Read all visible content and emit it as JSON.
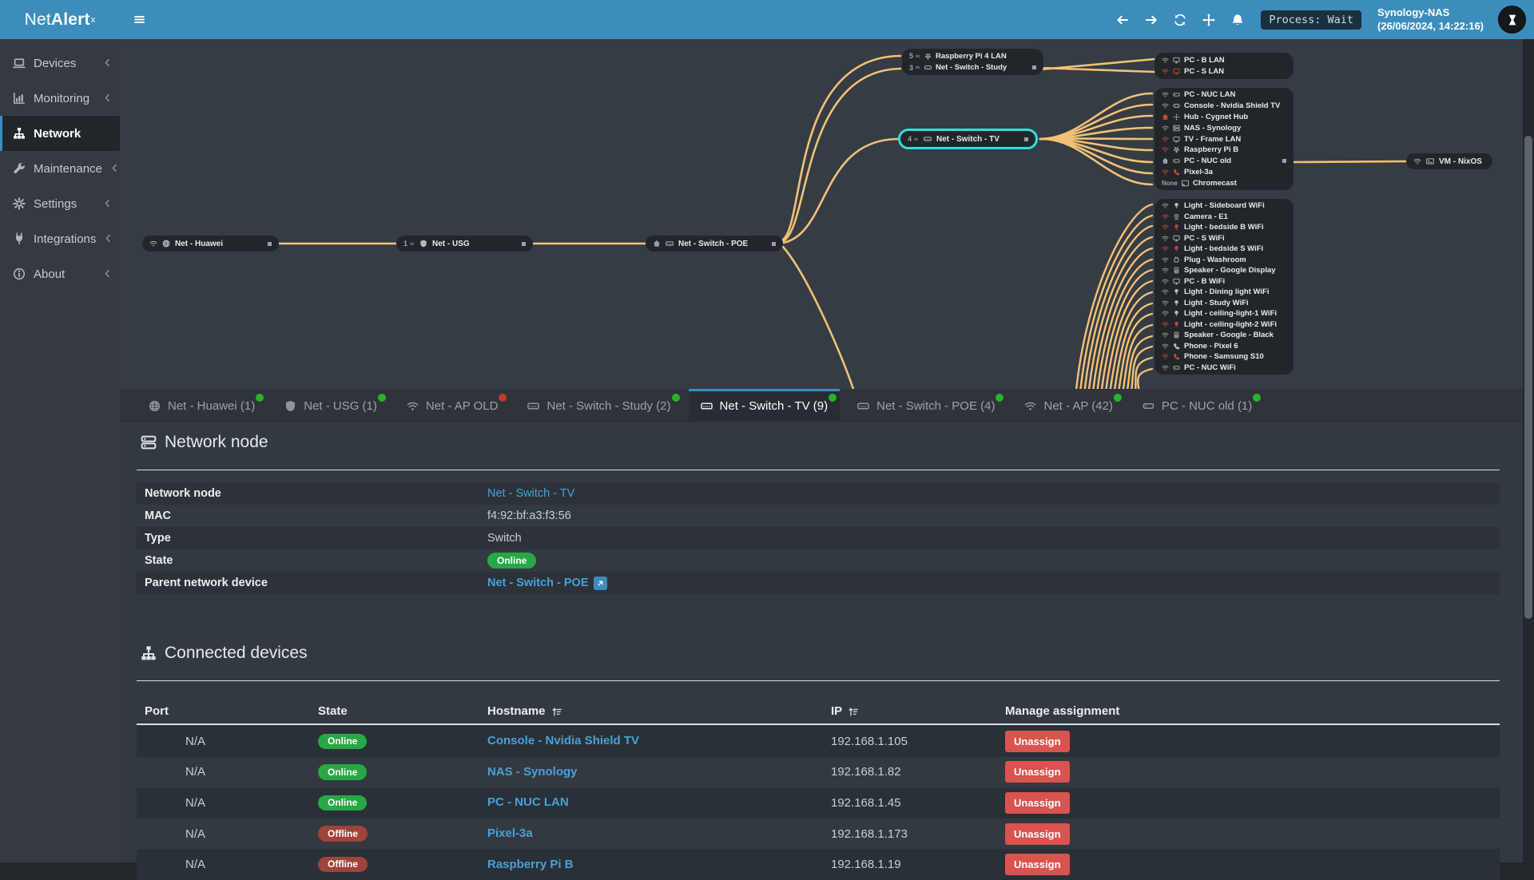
{
  "navbar": {
    "brand_net": "Net",
    "brand_alert": "Alert",
    "brand_sup": "x",
    "nav_icons": [
      "arrow-left",
      "arrow-right",
      "refresh",
      "move",
      "bell"
    ],
    "process_label": "Process: Wait",
    "host": "Synology-NAS",
    "timestamp": "(26/06/2024, 14:22:16)"
  },
  "sidebar": {
    "items": [
      {
        "label": "Devices",
        "icon": "laptop",
        "chevron": true,
        "active": false
      },
      {
        "label": "Monitoring",
        "icon": "chart",
        "chevron": true,
        "active": false
      },
      {
        "label": "Network",
        "icon": "sitemap",
        "chevron": false,
        "active": true
      },
      {
        "label": "Maintenance",
        "icon": "wrench",
        "chevron": true,
        "active": false
      },
      {
        "label": "Settings",
        "icon": "gear",
        "chevron": true,
        "active": false
      },
      {
        "label": "Integrations",
        "icon": "plug",
        "chevron": true,
        "active": false
      },
      {
        "label": "About",
        "icon": "info",
        "chevron": true,
        "active": false
      }
    ]
  },
  "diagram": {
    "chain": [
      {
        "icons": [
          "wifi"
        ],
        "icons2": [
          "globe"
        ],
        "label": "Net - Huawei",
        "port": true
      },
      {
        "count": "1",
        "icons2": [
          "shield"
        ],
        "label": "Net - USG",
        "port": true
      },
      {
        "icons": [
          "house"
        ],
        "icons2": [
          "switchdev"
        ],
        "label": "Net - Switch - POE",
        "port": true
      }
    ],
    "top_cluster": [
      {
        "count": "5",
        "icon": "rpi",
        "label": "Raspberry Pi 4 LAN"
      },
      {
        "count": "3",
        "icon": "switchdev",
        "label": "Net - Switch - Study",
        "port": true
      }
    ],
    "selected_node": {
      "count": "4",
      "icon": "switchdev",
      "label": "Net - Switch - TV",
      "port": true
    },
    "vm_node": {
      "conn": "wifi",
      "icon": "vm",
      "label": "VM - NixOS"
    },
    "lan_top_rows": [
      {
        "conn": "wifi",
        "conn_off": false,
        "icon": "desktop",
        "icon_off": false,
        "label": "PC - B LAN"
      },
      {
        "conn": "wifi",
        "conn_off": true,
        "icon": "desktop",
        "icon_off": true,
        "label": "PC - S LAN"
      }
    ],
    "tv_rows": [
      {
        "conn": "wifi",
        "conn_off": false,
        "icon": "minipc",
        "icon_off": false,
        "label": "PC - NUC LAN"
      },
      {
        "conn": "wifi",
        "conn_off": false,
        "icon": "gamepad",
        "icon_off": false,
        "label": "Console - Nvidia Shield TV"
      },
      {
        "conn": "house",
        "conn_off": true,
        "icon": "hub",
        "icon_off": false,
        "label": "Hub - Cygnet Hub"
      },
      {
        "conn": "wifi",
        "conn_off": false,
        "icon": "server",
        "icon_off": false,
        "label": "NAS - Synology"
      },
      {
        "conn": "wifi",
        "conn_off": true,
        "icon": "tv",
        "icon_off": false,
        "label": "TV - Frame LAN"
      },
      {
        "conn": "wifi",
        "conn_off": true,
        "icon": "rpi",
        "icon_off": false,
        "label": "Raspberry Pi B"
      },
      {
        "conn": "house",
        "conn_off": false,
        "icon": "minipc",
        "icon_off": false,
        "label": "PC - NUC old",
        "port": true
      },
      {
        "conn": "wifi",
        "conn_off": true,
        "icon": "phone",
        "icon_off": true,
        "label": "Pixel-3a"
      },
      {
        "conn": "none",
        "none_label": "None",
        "icon": "cast",
        "icon_off": false,
        "label": "Chromecast"
      }
    ],
    "wifi_rows": [
      {
        "conn": "wifi",
        "conn_off": false,
        "icon": "bulb",
        "icon_off": false,
        "label": "Light - Sideboard WiFi"
      },
      {
        "conn": "wifi",
        "conn_off": true,
        "icon": "camera",
        "icon_off": false,
        "label": "Camera - E1"
      },
      {
        "conn": "wifi",
        "conn_off": true,
        "icon": "bulb",
        "icon_off": true,
        "label": "Light - bedside B WiFi"
      },
      {
        "conn": "wifi",
        "conn_off": false,
        "icon": "desktop",
        "icon_off": false,
        "label": "PC - S WiFi"
      },
      {
        "conn": "wifi",
        "conn_off": true,
        "icon": "bulb",
        "icon_off": true,
        "label": "Light - bedside S WiFi"
      },
      {
        "conn": "wifi",
        "conn_off": false,
        "icon": "plugdev",
        "icon_off": false,
        "label": "Plug - Washroom"
      },
      {
        "conn": "wifi",
        "conn_off": false,
        "icon": "speaker",
        "icon_off": false,
        "label": "Speaker - Google Display"
      },
      {
        "conn": "wifi",
        "conn_off": false,
        "icon": "desktop",
        "icon_off": false,
        "label": "PC - B WiFi"
      },
      {
        "conn": "wifi",
        "conn_off": false,
        "icon": "bulb",
        "icon_off": false,
        "label": "Light - Dining light WiFi"
      },
      {
        "conn": "wifi",
        "conn_off": false,
        "icon": "bulb",
        "icon_off": false,
        "label": "Light - Study WiFi"
      },
      {
        "conn": "wifi",
        "conn_off": false,
        "icon": "bulb",
        "icon_off": false,
        "label": "Light - ceiling-light-1 WiFi"
      },
      {
        "conn": "wifi",
        "conn_off": true,
        "icon": "bulb",
        "icon_off": true,
        "label": "Light - ceiling-light-2 WiFi"
      },
      {
        "conn": "wifi",
        "conn_off": false,
        "icon": "speaker",
        "icon_off": false,
        "label": "Speaker - Google - Black"
      },
      {
        "conn": "wifi",
        "conn_off": false,
        "icon": "phone",
        "icon_off": false,
        "label": "Phone - Pixel 6"
      },
      {
        "conn": "wifi",
        "conn_off": true,
        "icon": "phone",
        "icon_off": true,
        "label": "Phone - Samsung S10"
      },
      {
        "conn": "wifi",
        "conn_off": false,
        "icon": "minipc",
        "icon_off": false,
        "label": "PC - NUC WiFi"
      }
    ]
  },
  "tabs": [
    {
      "icon": "globe",
      "label": "Net - Huawei (1)",
      "status": "online",
      "active": false
    },
    {
      "icon": "shield",
      "label": "Net - USG (1)",
      "status": "online",
      "active": false
    },
    {
      "icon": "wifi",
      "label": "Net - AP OLD",
      "status": "offline",
      "active": false
    },
    {
      "icon": "switchdev",
      "label": "Net - Switch - Study (2)",
      "status": "online",
      "active": false
    },
    {
      "icon": "switchdev",
      "label": "Net - Switch - TV (9)",
      "status": "online",
      "active": true
    },
    {
      "icon": "switchdev",
      "label": "Net - Switch - POE (4)",
      "status": "online",
      "active": false
    },
    {
      "icon": "wifi",
      "label": "Net - AP (42)",
      "status": "online",
      "active": false
    },
    {
      "icon": "minipc",
      "label": "PC - NUC old (1)",
      "status": "online",
      "active": false
    }
  ],
  "node_section": {
    "title": "Network node",
    "rows": [
      {
        "label": "Network node",
        "type": "link",
        "value": "Net - Switch - TV"
      },
      {
        "label": "MAC",
        "type": "text",
        "value": "f4:92:bf:a3:f3:56"
      },
      {
        "label": "Type",
        "type": "text",
        "value": "Switch"
      },
      {
        "label": "State",
        "type": "badge",
        "value": "Online"
      },
      {
        "label": "Parent network device",
        "type": "link-ext",
        "value": "Net - Switch - POE"
      }
    ]
  },
  "devices_section": {
    "title": "Connected devices",
    "columns": [
      {
        "label": "Port",
        "sort": false
      },
      {
        "label": "State",
        "sort": false
      },
      {
        "label": "Hostname",
        "sort": true
      },
      {
        "label": "IP",
        "sort": true
      },
      {
        "label": "Manage assignment",
        "sort": false
      }
    ],
    "action_label": "Unassign",
    "rows": [
      {
        "port": "N/A",
        "state": "Online",
        "hostname": "Console - Nvidia Shield TV",
        "ip": "192.168.1.105"
      },
      {
        "port": "N/A",
        "state": "Online",
        "hostname": "NAS - Synology",
        "ip": "192.168.1.82"
      },
      {
        "port": "N/A",
        "state": "Online",
        "hostname": "PC - NUC LAN",
        "ip": "192.168.1.45"
      },
      {
        "port": "N/A",
        "state": "Offline",
        "hostname": "Pixel-3a",
        "ip": "192.168.1.173"
      },
      {
        "port": "N/A",
        "state": "Offline",
        "hostname": "Raspberry Pi B",
        "ip": "192.168.1.19"
      }
    ]
  },
  "colors": {
    "navbar_blue": "#3c8dbc",
    "link_blue": "#47a1d9",
    "edge_orange": "#f2c178",
    "selected_cyan": "#2fe0dc",
    "online_green": "#28a745",
    "offline_red": "#a0433a",
    "dot_online": "#28b428",
    "dot_offline": "#c0392b",
    "danger_red": "#d9534f",
    "icon_offline": "#c0493c"
  }
}
